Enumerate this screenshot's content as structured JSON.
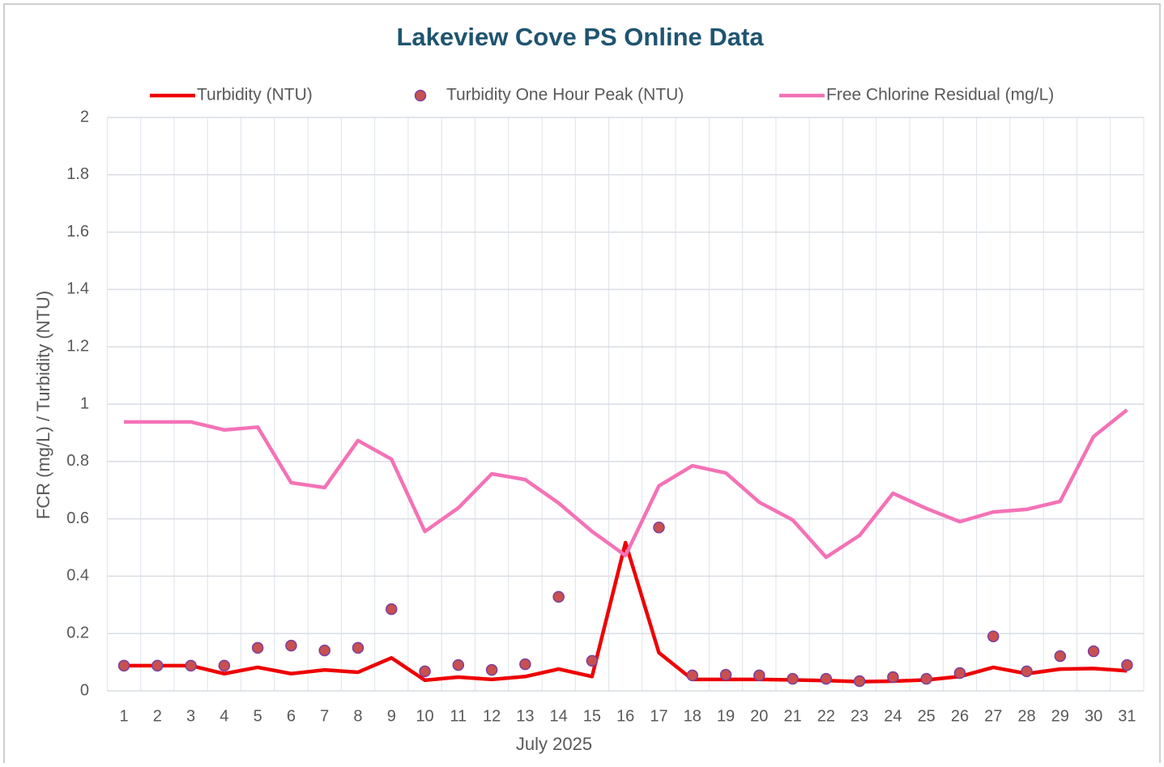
{
  "chart_data": {
    "type": "line",
    "title": "Lakeview Cove PS Online Data",
    "x_label": "July 2025",
    "y_label": "FCR (mg/L) / Turbidity (NTU)",
    "categories": [
      "1",
      "2",
      "3",
      "4",
      "5",
      "6",
      "7",
      "8",
      "9",
      "10",
      "11",
      "12",
      "13",
      "14",
      "15",
      "16",
      "17",
      "18",
      "19",
      "20",
      "21",
      "22",
      "23",
      "24",
      "25",
      "26",
      "27",
      "28",
      "29",
      "30",
      "31"
    ],
    "series": [
      {
        "name": "Turbidity (NTU)",
        "type": "line",
        "color": "#ee0000",
        "values": [
          0.088,
          0.088,
          0.088,
          0.06,
          0.082,
          0.06,
          0.073,
          0.065,
          0.115,
          0.037,
          0.048,
          0.04,
          0.05,
          0.076,
          0.05,
          0.517,
          0.133,
          0.04,
          0.04,
          0.04,
          0.038,
          0.036,
          0.032,
          0.034,
          0.038,
          0.05,
          0.082,
          0.06,
          0.076,
          0.078,
          0.07
        ]
      },
      {
        "name": "Turbidity One Hour Peak (NTU)",
        "type": "scatter",
        "color": "#c9504f",
        "values": [
          0.088,
          0.088,
          0.088,
          0.088,
          0.15,
          0.158,
          0.141,
          0.15,
          0.285,
          0.068,
          0.09,
          0.073,
          0.093,
          0.328,
          0.105,
          null,
          0.57,
          0.054,
          0.056,
          0.054,
          0.042,
          0.042,
          0.034,
          0.048,
          0.042,
          0.062,
          0.19,
          0.068,
          0.121,
          0.138,
          0.09
        ]
      },
      {
        "name": "Free Chlorine Residual (mg/L)",
        "type": "line",
        "color": "#f472b6",
        "values": [
          0.938,
          0.938,
          0.938,
          0.91,
          0.92,
          0.726,
          0.709,
          0.873,
          0.808,
          0.556,
          0.638,
          0.757,
          0.737,
          0.655,
          0.556,
          0.472,
          0.715,
          0.785,
          0.76,
          0.658,
          0.596,
          0.466,
          0.542,
          0.689,
          0.636,
          0.59,
          0.624,
          0.633,
          0.661,
          0.887,
          0.98
        ]
      }
    ],
    "ylim": [
      0,
      2
    ],
    "yticks": [
      0,
      0.2,
      0.4,
      0.6,
      0.8,
      1,
      1.2,
      1.4,
      1.6,
      1.8,
      2
    ],
    "grid": true,
    "legend": "top"
  }
}
